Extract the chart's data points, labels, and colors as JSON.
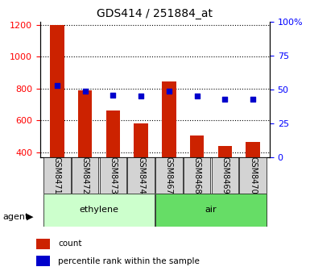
{
  "title": "GDS414 / 251884_at",
  "samples": [
    "GSM8471",
    "GSM8472",
    "GSM8473",
    "GSM8474",
    "GSM8467",
    "GSM8468",
    "GSM8469",
    "GSM8470"
  ],
  "counts": [
    1200,
    790,
    665,
    580,
    845,
    505,
    440,
    465
  ],
  "percentiles": [
    53,
    49,
    46,
    45,
    49,
    45,
    43,
    43
  ],
  "groups": [
    {
      "label": "ethylene",
      "indices": [
        0,
        1,
        2,
        3
      ],
      "color": "#ccffcc"
    },
    {
      "label": "air",
      "indices": [
        4,
        5,
        6,
        7
      ],
      "color": "#66dd66"
    }
  ],
  "ylim_left": [
    370,
    1220
  ],
  "ylim_right": [
    0,
    100
  ],
  "yticks_left": [
    400,
    600,
    800,
    1000,
    1200
  ],
  "yticks_right": [
    0,
    25,
    50,
    75,
    100
  ],
  "ytick_right_labels": [
    "0",
    "25",
    "50",
    "75",
    "100%"
  ],
  "bar_color": "#cc2200",
  "dot_color": "#0000cc",
  "grid_color": "#000000",
  "agent_label": "agent",
  "legend_count": "count",
  "legend_percentile": "percentile rank within the sample",
  "bar_width": 0.5
}
